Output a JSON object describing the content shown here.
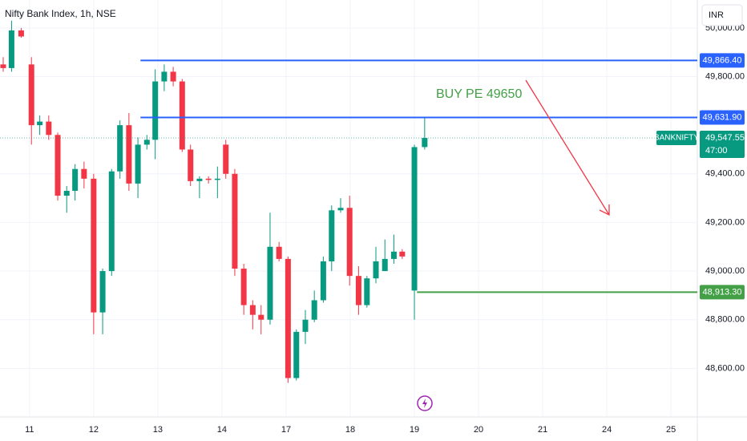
{
  "chart_data": {
    "type": "candlestick",
    "title": "Nifty Bank Index, 1h, NSE",
    "currency": "INR",
    "up_color": "#089981",
    "down_color": "#f23645",
    "grid": true,
    "xlim": [
      -0.46,
      10.41
    ],
    "ylim": [
      48400,
      50115
    ],
    "xticks": [
      {
        "value": 0,
        "label": "11"
      },
      {
        "value": 1,
        "label": "12"
      },
      {
        "value": 2,
        "label": "13"
      },
      {
        "value": 3,
        "label": "14"
      },
      {
        "value": 4,
        "label": "17"
      },
      {
        "value": 5,
        "label": "18"
      },
      {
        "value": 6,
        "label": "19"
      },
      {
        "value": 7,
        "label": "20"
      },
      {
        "value": 8,
        "label": "21"
      },
      {
        "value": 9,
        "label": "24"
      },
      {
        "value": 10,
        "label": "25"
      }
    ],
    "yticks": [
      {
        "value": 50000,
        "label": "50,000.00"
      },
      {
        "value": 49800,
        "label": "49,800.00"
      },
      {
        "value": 49400,
        "label": "49,400.00"
      },
      {
        "value": 49200,
        "label": "49,200.00"
      },
      {
        "value": 49000,
        "label": "49,000.00"
      },
      {
        "value": 48800,
        "label": "48,800.00"
      },
      {
        "value": 48600,
        "label": "48,600.00"
      }
    ],
    "candles": {
      "x": [
        -0.41,
        -0.28,
        -0.13,
        0.03,
        0.16,
        0.3,
        0.44,
        0.58,
        0.71,
        0.85,
        1.0,
        1.14,
        1.28,
        1.41,
        1.55,
        1.69,
        1.83,
        1.96,
        2.1,
        2.24,
        2.38,
        2.51,
        2.65,
        2.79,
        2.93,
        3.06,
        3.2,
        3.34,
        3.48,
        3.61,
        3.75,
        3.89,
        4.03,
        4.16,
        4.3,
        4.44,
        4.58,
        4.71,
        4.85,
        4.99,
        5.13,
        5.26,
        5.4,
        5.54,
        5.68,
        5.81,
        6.0,
        6.16
      ],
      "open": [
        49850,
        49835,
        49990,
        49850,
        49600,
        49615,
        49560,
        49310,
        49330,
        49420,
        49380,
        48830,
        49000,
        49410,
        49600,
        49360,
        49520,
        49540,
        49780,
        49820,
        49780,
        49500,
        49370,
        49380,
        49375,
        49520,
        49400,
        49010,
        48860,
        48820,
        48800,
        49100,
        49050,
        48560,
        48750,
        48800,
        48880,
        49040,
        49250,
        49260,
        48980,
        48860,
        48970,
        49000,
        49050,
        49080,
        48920,
        49510
      ],
      "high": [
        49880,
        50030,
        50000,
        49880,
        49640,
        49640,
        49570,
        49350,
        49440,
        49450,
        49400,
        49010,
        49420,
        49620,
        49650,
        49550,
        49560,
        49830,
        49850,
        49840,
        49790,
        49520,
        49390,
        49390,
        49430,
        49540,
        49420,
        49030,
        48880,
        48860,
        49240,
        49120,
        49060,
        48760,
        48840,
        48920,
        49060,
        49270,
        49300,
        49310,
        49020,
        48980,
        49100,
        49130,
        49150,
        49090,
        49520,
        49632
      ],
      "low": [
        49820,
        49820,
        49960,
        49520,
        49560,
        49540,
        49290,
        49240,
        49290,
        49340,
        48740,
        48740,
        48980,
        49380,
        49330,
        49300,
        49500,
        49460,
        49740,
        49760,
        49490,
        49350,
        49300,
        49360,
        49300,
        49380,
        48980,
        48820,
        48760,
        48740,
        48780,
        49040,
        48540,
        48550,
        48700,
        48790,
        48870,
        49000,
        49240,
        48940,
        48820,
        48850,
        48950,
        49000,
        49030,
        49050,
        48800,
        49500
      ],
      "close": [
        49835,
        49990,
        49965,
        49600,
        49615,
        49560,
        49310,
        49330,
        49420,
        49380,
        48830,
        49000,
        49410,
        49600,
        49360,
        49520,
        49540,
        49780,
        49820,
        49780,
        49500,
        49370,
        49380,
        49375,
        49380,
        49400,
        49010,
        48860,
        48820,
        48800,
        49100,
        49050,
        48560,
        48750,
        48800,
        48880,
        49040,
        49250,
        49260,
        48980,
        48860,
        48970,
        49040,
        49050,
        49080,
        49060,
        49510,
        49547.55
      ]
    },
    "price_lines": [
      {
        "value": 49866.4,
        "label": "49,866.40",
        "color": "#2962ff",
        "x_start": 1.73
      },
      {
        "value": 49631.9,
        "label": "49,631.90",
        "color": "#2962ff",
        "x_start": 1.73
      },
      {
        "value": 48913.3,
        "label": "48,913.30",
        "color": "#43a047",
        "x_start": 6.04
      }
    ],
    "last_price": {
      "symbol": "BANKNIFTY",
      "value": 49547.55,
      "label": "49,547.55",
      "countdown": "47:00"
    },
    "annotation": "BUY PE 49650"
  }
}
